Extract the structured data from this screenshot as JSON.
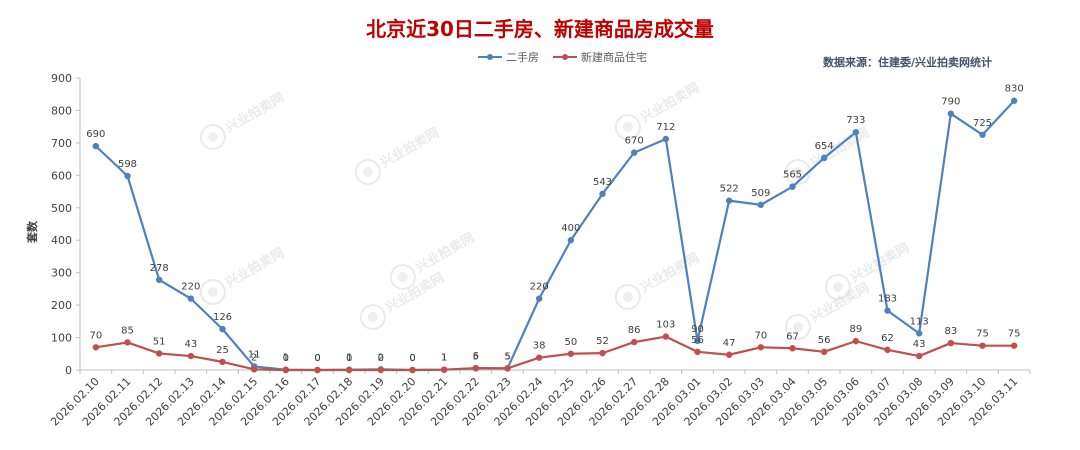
{
  "chart_data": {
    "type": "line",
    "title": "北京近30日二手房、新建商品房成交量",
    "source": "数据来源：住建委/兴业拍卖网统计",
    "ylabel": "套数",
    "ylim": [
      0,
      900
    ],
    "yticks": [
      0,
      100,
      200,
      300,
      400,
      500,
      600,
      700,
      800,
      900
    ],
    "grid": false,
    "legend_position": "top-center",
    "watermark": "兴业拍卖网",
    "categories": [
      "2026.02.10",
      "2026.02.11",
      "2026.02.12",
      "2026.02.13",
      "2026.02.14",
      "2026.02.15",
      "2026.02.16",
      "2026.02.17",
      "2026.02.18",
      "2026.02.19",
      "2026.02.20",
      "2026.02.21",
      "2026.02.22",
      "2026.02.23",
      "2026.02.24",
      "2026.02.25",
      "2026.02.26",
      "2026.02.27",
      "2026.02.28",
      "2026.03.01",
      "2026.03.02",
      "2026.03.03",
      "2026.03.04",
      "2026.03.05",
      "2026.03.06",
      "2026.03.07",
      "2026.03.08",
      "2026.03.09",
      "2026.03.10",
      "2026.03.11"
    ],
    "series": [
      {
        "name": "二手房",
        "color": "#4f81bd",
        "values": [
          690,
          598,
          278,
          220,
          126,
          11,
          1,
          0,
          1,
          2,
          0,
          1,
          5,
          5,
          220,
          400,
          543,
          670,
          712,
          90,
          522,
          509,
          565,
          654,
          733,
          183,
          113,
          790,
          725,
          830
        ]
      },
      {
        "name": "新建商品住宅",
        "color": "#c0504d",
        "values": [
          70,
          85,
          51,
          43,
          25,
          2,
          0,
          0,
          0,
          0,
          0,
          1,
          6,
          5,
          38,
          50,
          52,
          86,
          103,
          56,
          47,
          70,
          67,
          56,
          89,
          62,
          43,
          83,
          75,
          75
        ]
      }
    ]
  }
}
